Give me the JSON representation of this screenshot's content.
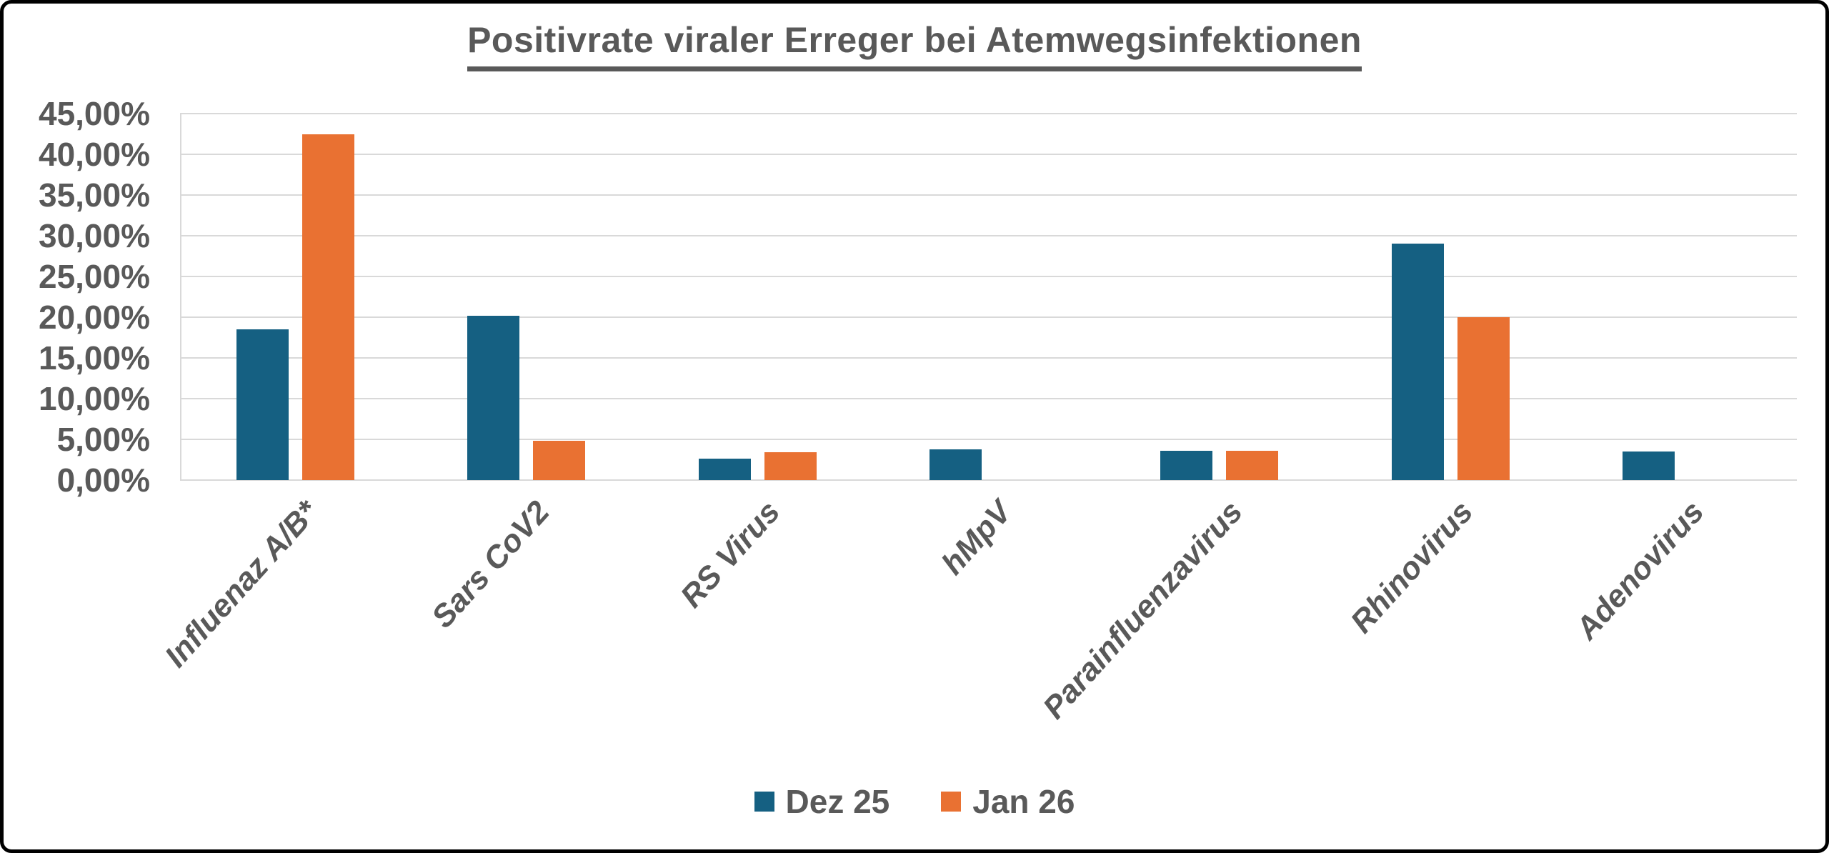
{
  "page": {
    "background_color": "#FFFFFF",
    "frame_border_color": "#000000"
  },
  "chart_data": {
    "type": "bar",
    "title": "Positivrate viraler Erreger bei Atemwegsinfektionen",
    "title_underlined": true,
    "categories": [
      "Influenaz A/B*",
      "Sars CoV2",
      "RS Virus",
      "hMpV",
      "Parainfluenzavirus",
      "Rhinovirus",
      "Adenovirus"
    ],
    "series": [
      {
        "name": "Dez 25",
        "color": "#156082",
        "values": [
          18.5,
          20.2,
          2.6,
          3.8,
          3.6,
          29.0,
          3.5
        ]
      },
      {
        "name": "Jan 26",
        "color": "#E97132",
        "values": [
          42.5,
          4.8,
          3.4,
          0,
          3.6,
          20.0,
          0
        ]
      }
    ],
    "xlabel": "",
    "ylabel": "",
    "ylim": [
      0,
      45
    ],
    "y_tick_step": 5,
    "y_tick_labels": [
      "0,00%",
      "5,00%",
      "10,00%",
      "15,00%",
      "20,00%",
      "25,00%",
      "30,00%",
      "35,00%",
      "40,00%",
      "45,00%"
    ],
    "grid": true,
    "gridline_color": "#D9D9D9",
    "text_color": "#595959",
    "legend_position": "bottom",
    "x_labels_rotated": true
  }
}
